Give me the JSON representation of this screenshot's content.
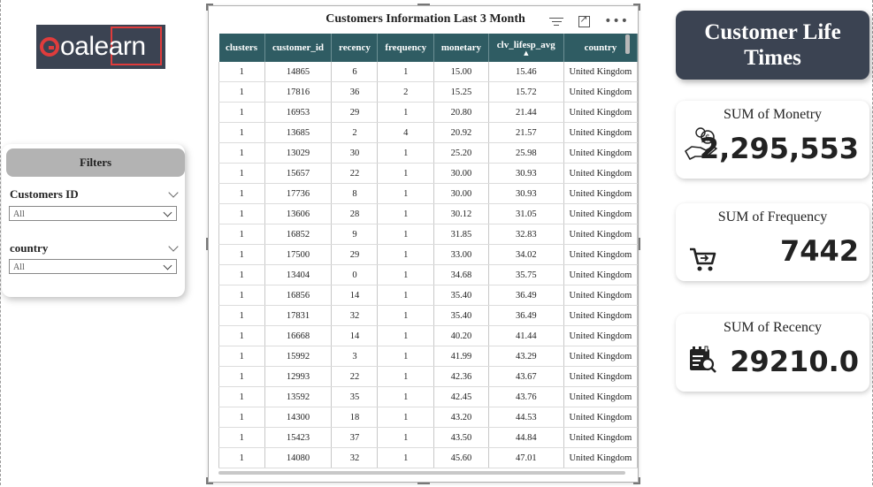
{
  "logo": {
    "text": "oalearn"
  },
  "filters": {
    "title": "Filters",
    "slicers": [
      {
        "label": "Customers ID",
        "value": "All"
      },
      {
        "label": "country",
        "value": "All"
      }
    ]
  },
  "table": {
    "title": "Customers Information Last 3 Month",
    "columns": [
      "clusters",
      "customer_id",
      "recency",
      "frequency",
      "monetary",
      "clv_lifesp_avg",
      "country"
    ],
    "rows": [
      [
        "1",
        "14865",
        "6",
        "1",
        "15.00",
        "15.46",
        "United Kingdom"
      ],
      [
        "1",
        "17816",
        "36",
        "2",
        "15.25",
        "15.72",
        "United Kingdom"
      ],
      [
        "1",
        "16953",
        "29",
        "1",
        "20.80",
        "21.44",
        "United Kingdom"
      ],
      [
        "1",
        "13685",
        "2",
        "4",
        "20.92",
        "21.57",
        "United Kingdom"
      ],
      [
        "1",
        "13029",
        "30",
        "1",
        "25.20",
        "25.98",
        "United Kingdom"
      ],
      [
        "1",
        "15657",
        "22",
        "1",
        "30.00",
        "30.93",
        "United Kingdom"
      ],
      [
        "1",
        "17736",
        "8",
        "1",
        "30.00",
        "30.93",
        "United Kingdom"
      ],
      [
        "1",
        "13606",
        "28",
        "1",
        "30.12",
        "31.05",
        "United Kingdom"
      ],
      [
        "1",
        "16852",
        "9",
        "1",
        "31.85",
        "32.83",
        "United Kingdom"
      ],
      [
        "1",
        "17500",
        "29",
        "1",
        "33.00",
        "34.02",
        "United Kingdom"
      ],
      [
        "1",
        "13404",
        "0",
        "1",
        "34.68",
        "35.75",
        "United Kingdom"
      ],
      [
        "1",
        "16856",
        "14",
        "1",
        "35.40",
        "36.49",
        "United Kingdom"
      ],
      [
        "1",
        "17831",
        "32",
        "1",
        "35.40",
        "36.49",
        "United Kingdom"
      ],
      [
        "1",
        "16668",
        "14",
        "1",
        "40.20",
        "41.44",
        "United Kingdom"
      ],
      [
        "1",
        "15992",
        "3",
        "1",
        "41.99",
        "43.29",
        "United Kingdom"
      ],
      [
        "1",
        "12993",
        "22",
        "1",
        "42.36",
        "43.67",
        "United Kingdom"
      ],
      [
        "1",
        "13592",
        "35",
        "1",
        "42.45",
        "43.76",
        "United Kingdom"
      ],
      [
        "1",
        "14300",
        "18",
        "1",
        "43.20",
        "44.53",
        "United Kingdom"
      ],
      [
        "1",
        "15423",
        "37",
        "1",
        "43.50",
        "44.84",
        "United Kingdom"
      ],
      [
        "1",
        "14080",
        "32",
        "1",
        "45.60",
        "47.01",
        "United Kingdom"
      ]
    ]
  },
  "title_card": {
    "line1": "Customer Life",
    "line2": "Times"
  },
  "kpis": [
    {
      "label": "SUM of Monetry",
      "value": "2,295,553",
      "icon": "money-hand-icon"
    },
    {
      "label": "SUM of Frequency",
      "value": "7442",
      "icon": "cart-icon"
    },
    {
      "label": "SUM of Recency",
      "value": "29210.0",
      "icon": "calendar-search-icon"
    }
  ],
  "colors": {
    "header": "#2f5c63",
    "title_card": "#3b4352",
    "logo_accent": "#e03c3c"
  }
}
